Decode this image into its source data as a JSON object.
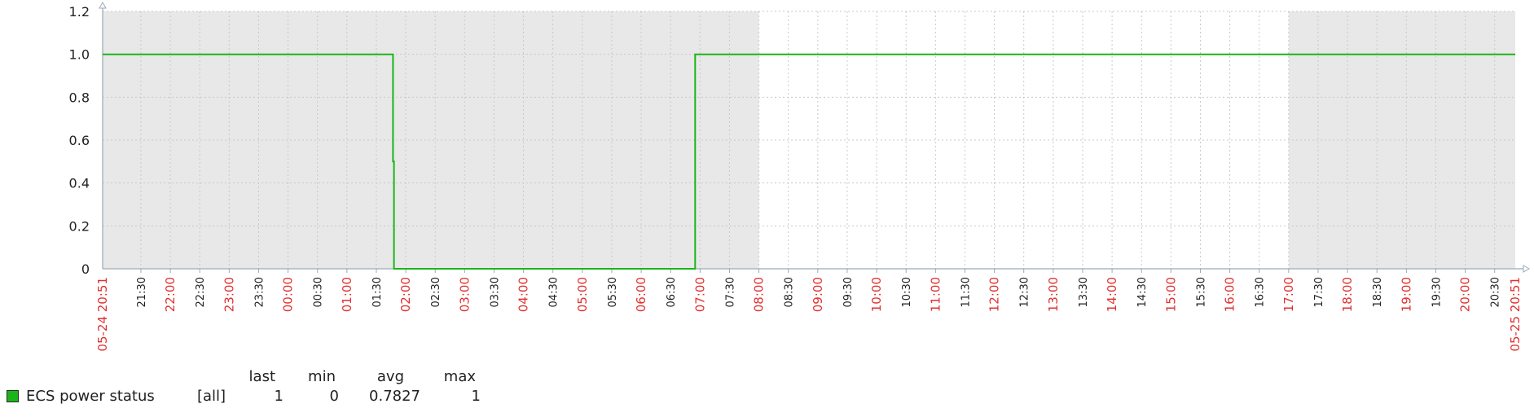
{
  "chart_data": {
    "type": "line",
    "x_start": "05-24 20:51",
    "x_end": "05-25 20:51",
    "ylim": [
      0,
      1.2
    ],
    "y_ticks": [
      "0",
      "0.2",
      "0.4",
      "0.6",
      "0.8",
      "1.0",
      "1.2"
    ],
    "grid": true,
    "x_tick_labels": [
      "21:30",
      "22:00",
      "22:30",
      "23:00",
      "23:30",
      "00:00",
      "00:30",
      "01:00",
      "01:30",
      "02:00",
      "02:30",
      "03:00",
      "03:30",
      "04:00",
      "04:30",
      "05:00",
      "05:30",
      "06:00",
      "06:30",
      "07:00",
      "07:30",
      "08:00",
      "08:30",
      "09:00",
      "09:30",
      "10:00",
      "10:30",
      "11:00",
      "11:30",
      "12:00",
      "12:30",
      "13:00",
      "13:30",
      "14:00",
      "14:30",
      "15:00",
      "15:30",
      "16:00",
      "16:30",
      "17:00",
      "17:30",
      "18:00",
      "18:30",
      "19:00",
      "19:30",
      "20:00",
      "20:30"
    ],
    "shaded_periods": [
      [
        "20:51",
        "08:00"
      ],
      [
        "17:00",
        "20:51"
      ]
    ],
    "series": [
      {
        "name": "ECS power status",
        "color": "#1ab51a",
        "x": [
          "20:51",
          "01:47",
          "01:47",
          "01:48",
          "01:48",
          "06:55",
          "06:55",
          "20:51"
        ],
        "y": [
          1,
          1,
          0.5,
          0.5,
          0,
          0,
          1,
          1
        ]
      }
    ]
  },
  "legend": {
    "headers": {
      "last": "last",
      "min": "min",
      "avg": "avg",
      "max": "max"
    },
    "items": [
      {
        "name": "ECS power status",
        "function": "[all]",
        "last": "1",
        "min": "0",
        "avg": "0.7827",
        "max": "1",
        "color": "#1ab51a"
      }
    ]
  }
}
